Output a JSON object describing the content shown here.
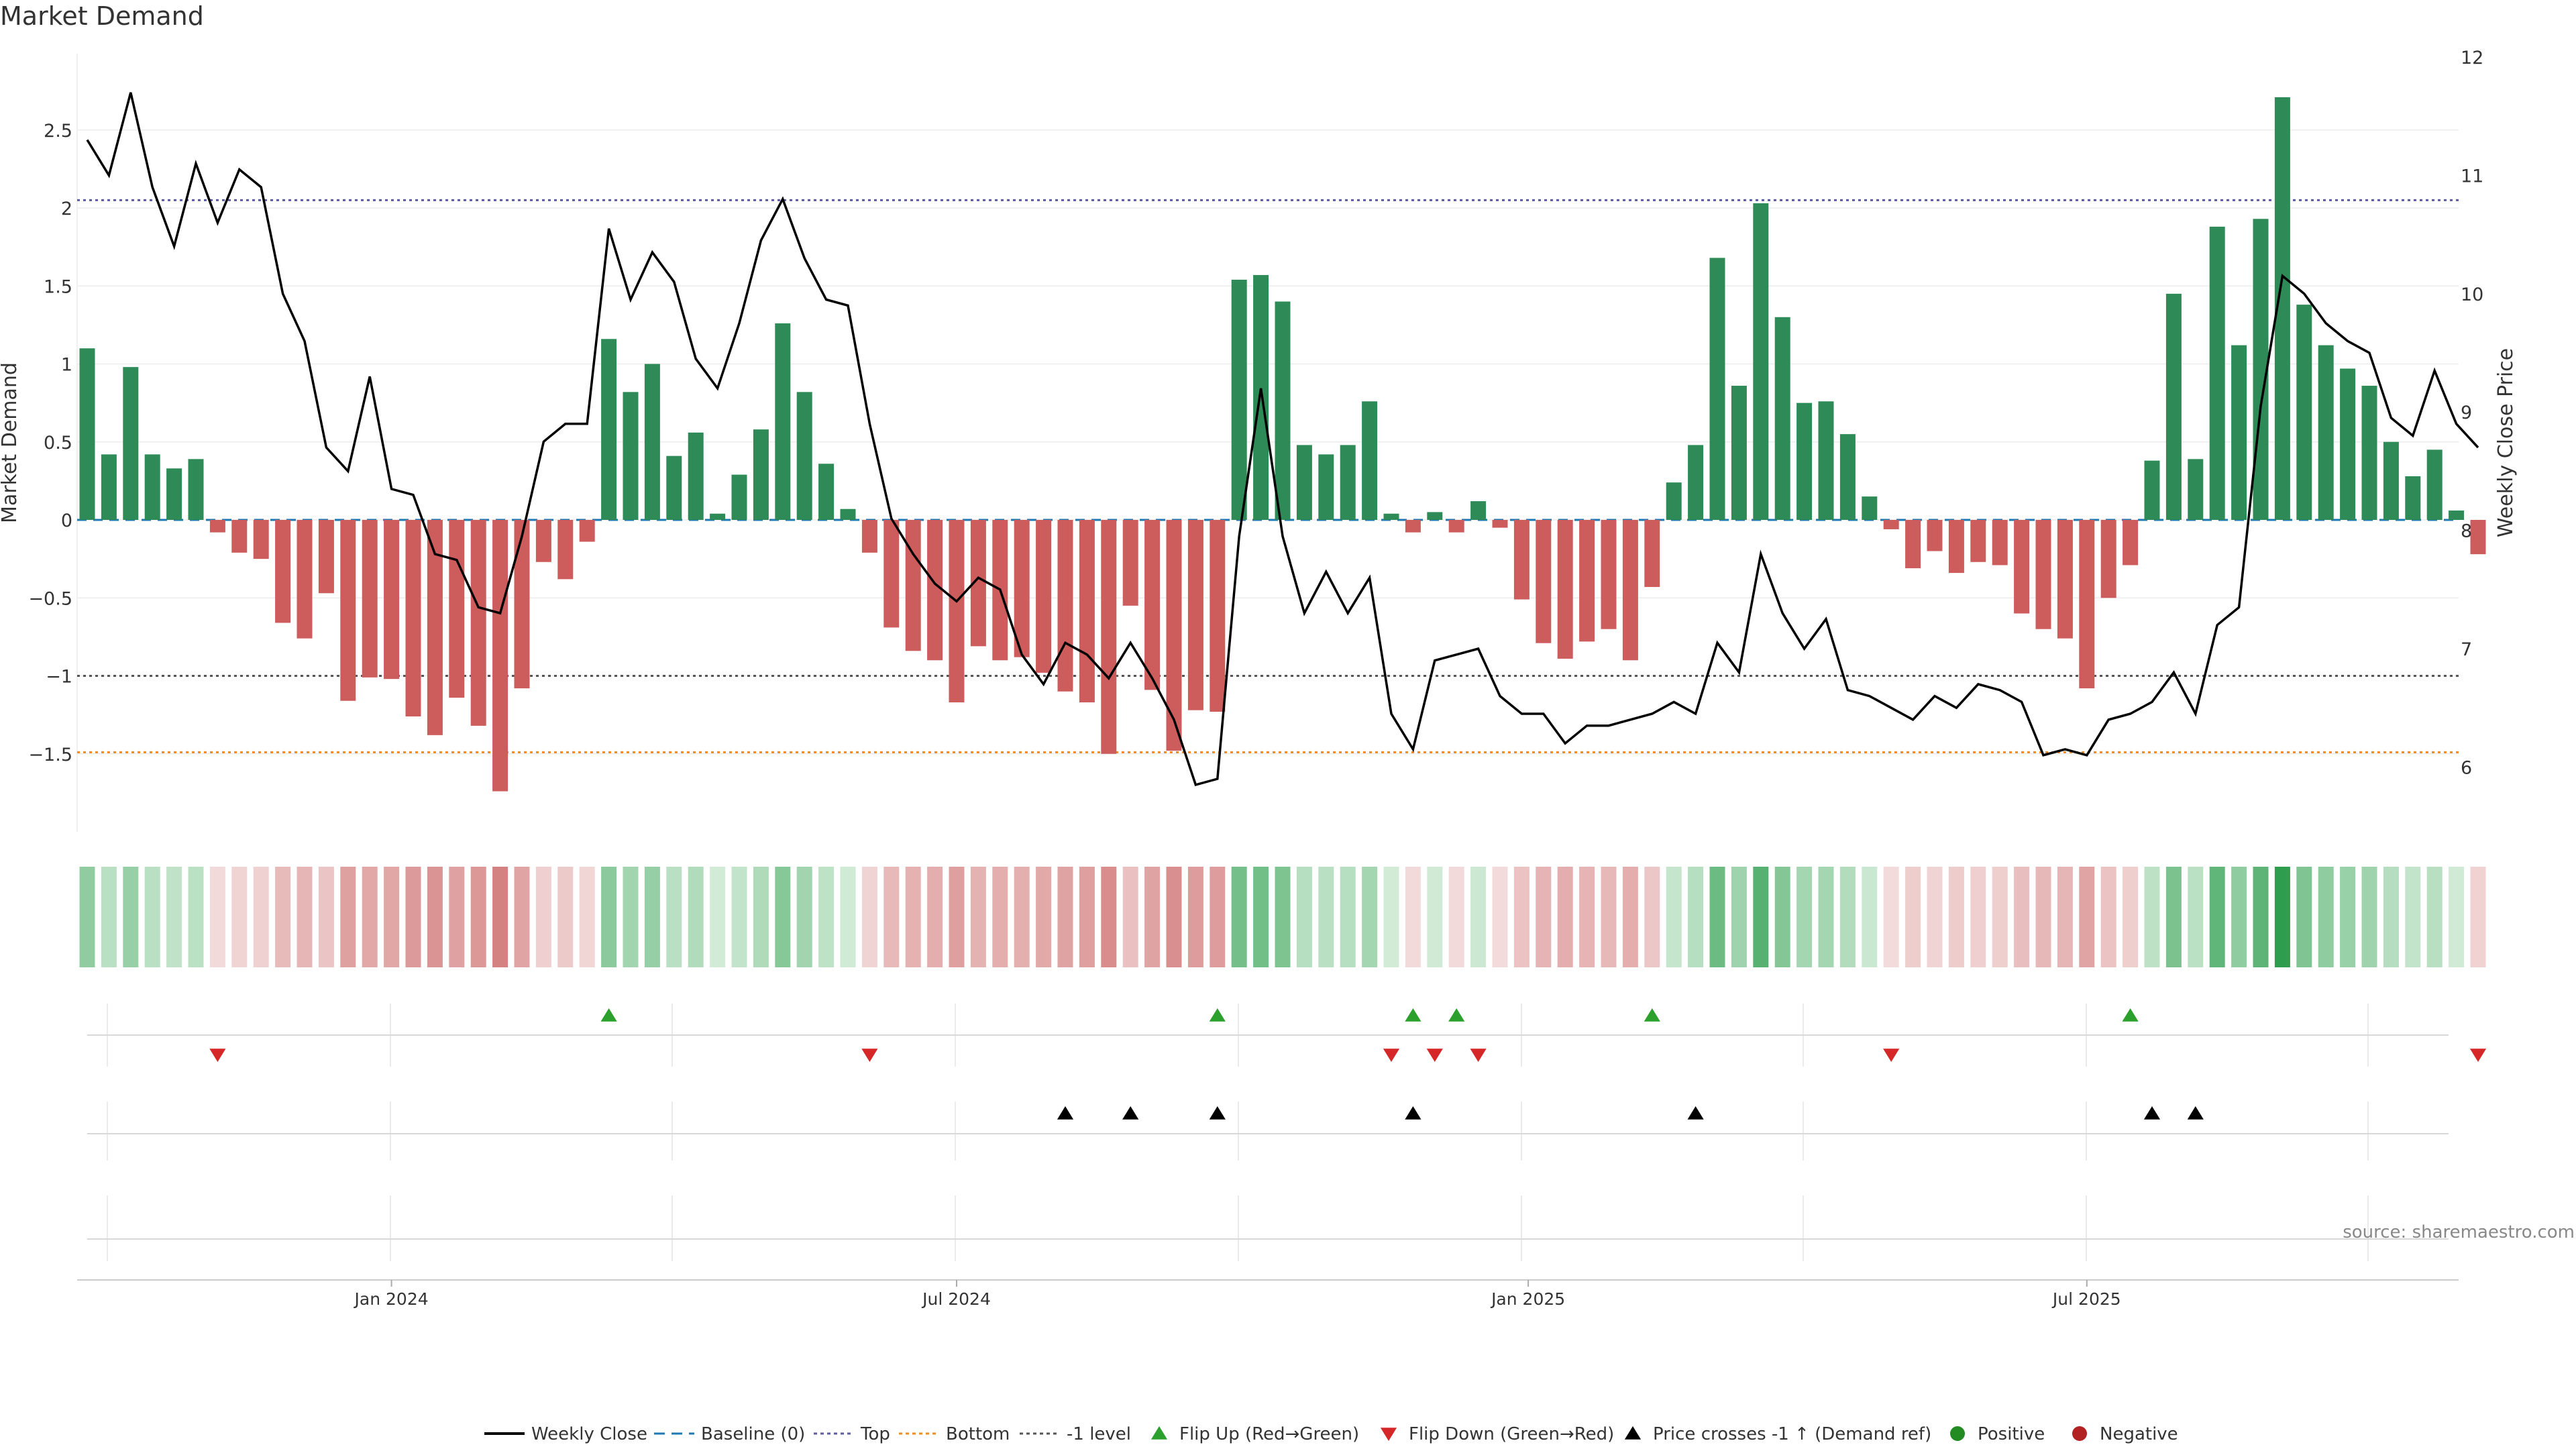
{
  "chart_data": {
    "type": "bar",
    "title": "Market Demand",
    "ylabel": "Market Demand",
    "y2label": "Weekly Close Price",
    "source": "source: sharemaestro.com",
    "ylim": [
      -2,
      3
    ],
    "y2lim": [
      5.5,
      12.0
    ],
    "yticks": [
      {
        "v": 2.5,
        "t": "2.5"
      },
      {
        "v": 2,
        "t": "2"
      },
      {
        "v": 1.5,
        "t": "1.5"
      },
      {
        "v": 1,
        "t": "1"
      },
      {
        "v": 0.5,
        "t": "0.5"
      },
      {
        "v": 0,
        "t": "0"
      },
      {
        "v": -0.5,
        "t": "−0.5"
      },
      {
        "v": -1,
        "t": "−1"
      },
      {
        "v": -1.5,
        "t": "−1.5"
      }
    ],
    "y2ticks": [
      {
        "v": 12,
        "t": "12"
      },
      {
        "v": 11,
        "t": "11"
      },
      {
        "v": 10,
        "t": "10"
      },
      {
        "v": 9,
        "t": "9"
      },
      {
        "v": 8,
        "t": "8"
      },
      {
        "v": 7,
        "t": "7"
      },
      {
        "v": 6,
        "t": "6"
      }
    ],
    "xticks": [
      {
        "week": 14,
        "t": "Jan 2024"
      },
      {
        "week": 40,
        "t": "Jul 2024"
      },
      {
        "week": 66.3,
        "t": "Jan 2025"
      },
      {
        "week": 92,
        "t": "Jul 2025"
      }
    ],
    "reference_lines": {
      "top": 2.05,
      "bottom": -1.49,
      "minus_one": -1.0,
      "baseline": 0
    },
    "demand": [
      1.1,
      0.42,
      0.98,
      0.42,
      0.33,
      0.39,
      -0.08,
      -0.21,
      -0.25,
      -0.66,
      -0.76,
      -0.47,
      -1.16,
      -1.01,
      -1.02,
      -1.26,
      -1.38,
      -1.14,
      -1.32,
      -1.74,
      -1.08,
      -0.27,
      -0.38,
      -0.14,
      1.16,
      0.82,
      1.0,
      0.41,
      0.56,
      0.04,
      0.29,
      0.58,
      1.26,
      0.82,
      0.36,
      0.07,
      -0.21,
      -0.69,
      -0.84,
      -0.9,
      -1.17,
      -0.81,
      -0.9,
      -0.88,
      -0.98,
      -1.1,
      -1.17,
      -1.5,
      -0.55,
      -1.09,
      -1.48,
      -1.22,
      -1.23,
      1.54,
      1.57,
      1.4,
      0.48,
      0.42,
      0.48,
      0.76,
      0.04,
      -0.08,
      0.05,
      -0.08,
      0.12,
      -0.05,
      -0.51,
      -0.79,
      -0.89,
      -0.78,
      -0.7,
      -0.9,
      -0.43,
      0.24,
      0.48,
      1.68,
      0.86,
      2.03,
      1.3,
      0.75,
      0.76,
      0.55,
      0.15,
      -0.06,
      -0.31,
      -0.2,
      -0.34,
      -0.27,
      -0.29,
      -0.6,
      -0.7,
      -0.76,
      -1.08,
      -0.5,
      -0.29,
      0.38,
      1.45,
      0.39,
      1.88,
      1.12,
      1.93,
      2.71,
      1.38,
      1.12,
      0.97,
      0.86,
      0.5,
      0.28,
      0.45,
      0.06,
      -0.22
    ],
    "weekly_close": [
      11.3,
      11.0,
      11.7,
      10.9,
      10.4,
      11.1,
      10.6,
      11.05,
      10.9,
      10.0,
      9.6,
      8.7,
      8.5,
      9.3,
      8.35,
      8.3,
      7.8,
      7.75,
      7.35,
      7.3,
      7.95,
      8.75,
      8.9,
      8.9,
      10.55,
      9.95,
      10.35,
      10.1,
      9.45,
      9.2,
      9.75,
      10.45,
      10.8,
      10.3,
      9.95,
      9.9,
      8.9,
      8.1,
      7.8,
      7.55,
      7.4,
      7.6,
      7.5,
      6.95,
      6.7,
      7.05,
      6.95,
      6.75,
      7.05,
      6.75,
      6.4,
      5.85,
      5.9,
      7.95,
      9.2,
      7.95,
      7.3,
      7.65,
      7.3,
      7.6,
      6.45,
      6.15,
      6.9,
      6.95,
      7.0,
      6.6,
      6.45,
      6.45,
      6.2,
      6.35,
      6.35,
      6.4,
      6.45,
      6.55,
      6.45,
      7.05,
      6.8,
      7.8,
      7.3,
      7.0,
      7.25,
      6.65,
      6.6,
      6.5,
      6.4,
      6.6,
      6.5,
      6.7,
      6.65,
      6.55,
      6.1,
      6.15,
      6.1,
      6.4,
      6.45,
      6.55,
      6.8,
      6.45,
      7.2,
      7.35,
      9.05,
      10.15,
      10.0,
      9.75,
      9.6,
      9.5,
      8.95,
      8.8,
      9.35,
      8.9,
      8.7
    ],
    "legend": [
      "Weekly Close",
      "Baseline (0)",
      "Top",
      "Bottom",
      "-1 level",
      "Flip Up (Red→Green)",
      "Flip Down (Green→Red)",
      "Price crosses -1 ↑ (Demand ref)",
      "Positive",
      "Negative"
    ],
    "flip_up_weeks": [
      24,
      52,
      61,
      63,
      72,
      94
    ],
    "flip_down_weeks": [
      6,
      36,
      60,
      62,
      64,
      83,
      110
    ],
    "price_cross_weeks": [
      45,
      48,
      52,
      61,
      74,
      95,
      97
    ],
    "colors": {
      "positive": "#2e8b57",
      "negative": "#cd5c5c",
      "line": "#000000",
      "top": "#5b5ba8",
      "bottom": "#f08a24",
      "minus_one": "#555555",
      "baseline": "#1f77b4",
      "flip_up": "#2ca02c",
      "flip_down": "#d62728",
      "cross": "#000000",
      "pos_dot": "#228b22",
      "neg_dot": "#b22222"
    }
  }
}
